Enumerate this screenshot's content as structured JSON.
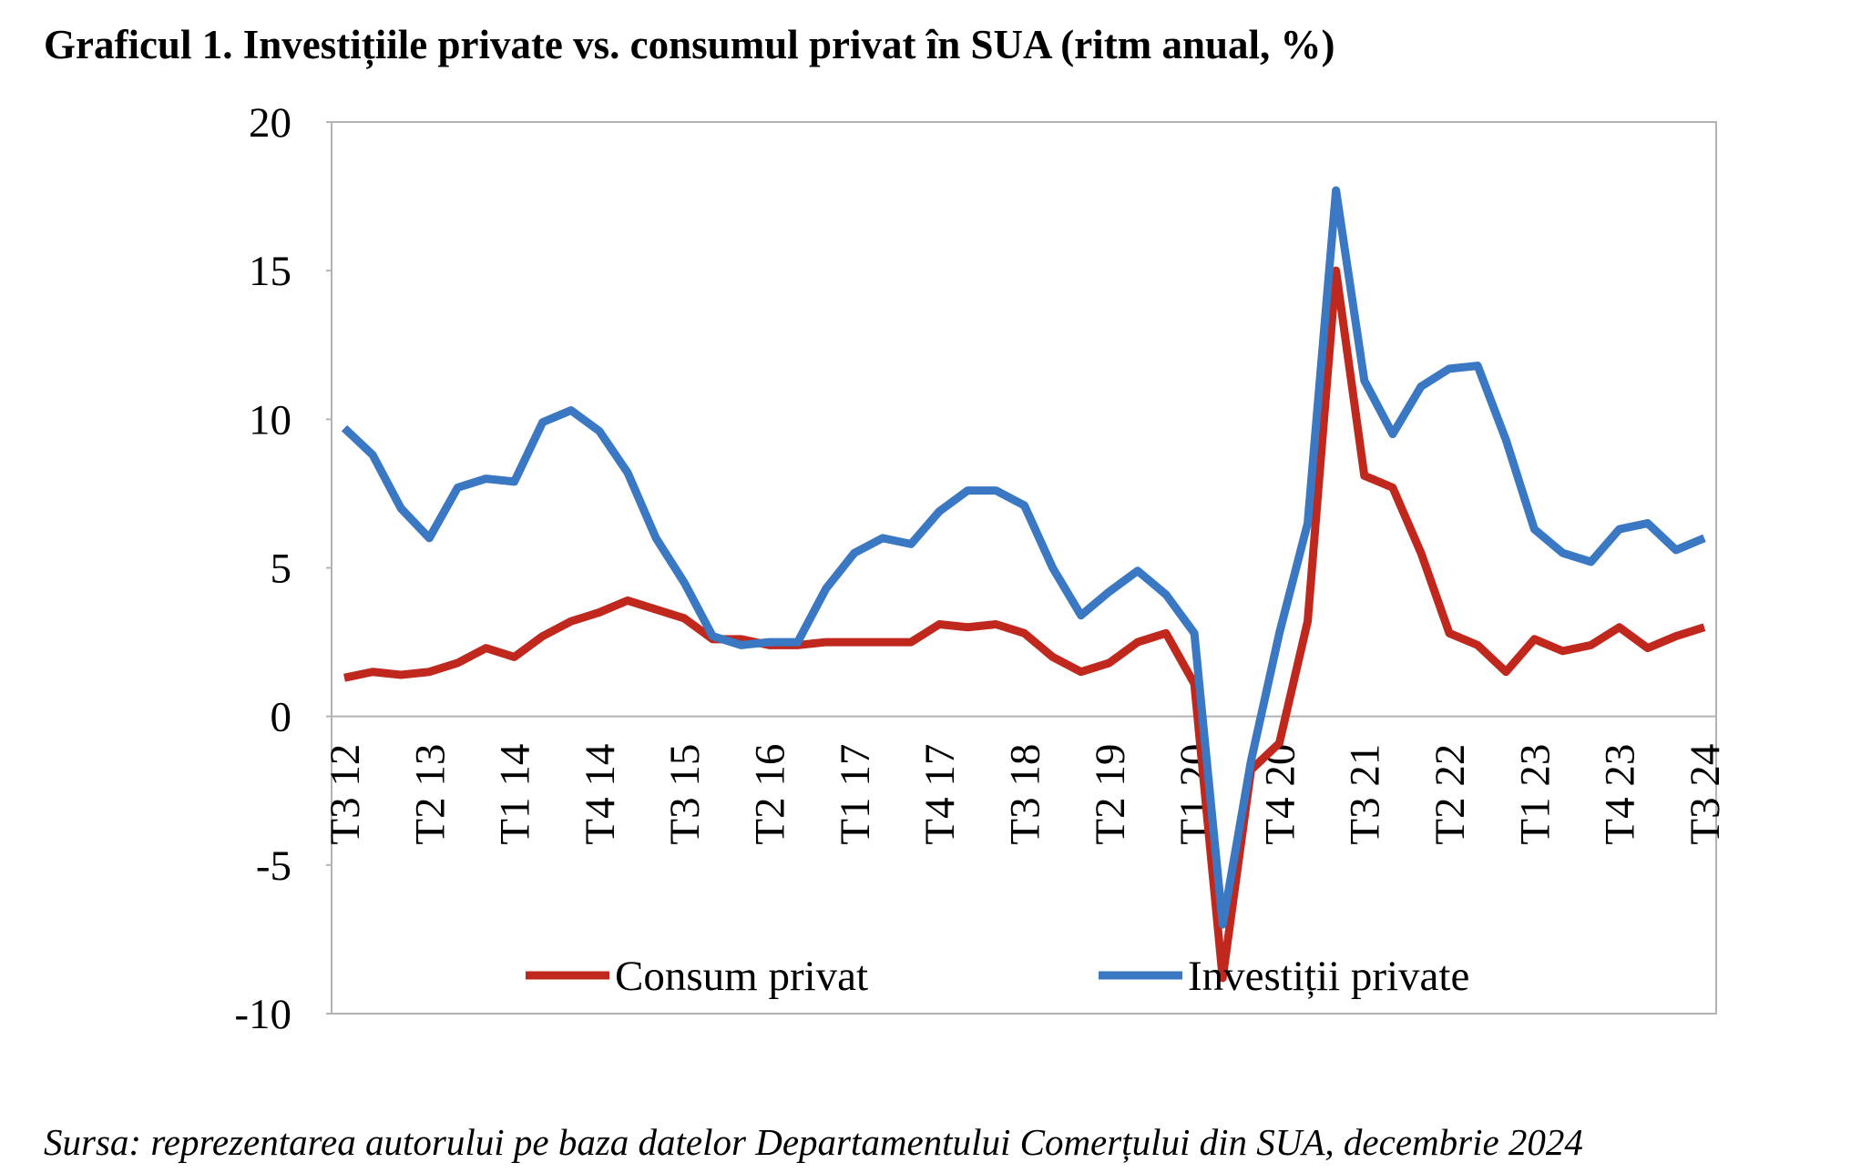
{
  "chart_data": {
    "type": "line",
    "title": "Graficul 1. Investițiile private vs. consumul privat în SUA (ritm anual, %)",
    "source": "Sursa: reprezentarea autorului pe baza datelor Departamentului Comerțului din SUA, decembrie 2024",
    "categories": [
      "T3 12",
      null,
      null,
      "T2 13",
      null,
      null,
      "T1 14",
      null,
      null,
      "T4 14",
      null,
      null,
      "T3 15",
      null,
      null,
      "T2 16",
      null,
      null,
      "T1 17",
      null,
      null,
      "T4 17",
      null,
      null,
      "T3 18",
      null,
      null,
      "T2 19",
      null,
      null,
      "T1 20",
      null,
      null,
      "T4 20",
      null,
      null,
      "T3 21",
      null,
      null,
      "T2 22",
      null,
      null,
      "T1 23",
      null,
      null,
      "T4 23",
      null,
      null,
      "T3 24"
    ],
    "series": [
      {
        "name": "Consum privat",
        "color": "#c0281e",
        "values": [
          1.3,
          1.5,
          1.4,
          1.5,
          1.8,
          2.3,
          2.0,
          2.7,
          3.2,
          3.5,
          3.9,
          3.6,
          3.3,
          2.6,
          2.6,
          2.4,
          2.4,
          2.5,
          2.5,
          2.5,
          2.5,
          3.1,
          3.0,
          3.1,
          2.8,
          2.0,
          1.5,
          1.8,
          2.5,
          2.8,
          1.1,
          -8.8,
          -1.8,
          -0.9,
          3.2,
          15.0,
          8.1,
          7.7,
          5.5,
          2.8,
          2.4,
          1.5,
          2.6,
          2.2,
          2.4,
          3.0,
          2.3,
          2.7,
          3.0
        ]
      },
      {
        "name": "Investiții private",
        "color": "#3a78c3",
        "values": [
          9.7,
          8.8,
          7.0,
          6.0,
          7.7,
          8.0,
          7.9,
          9.9,
          10.3,
          9.6,
          8.2,
          6.0,
          4.5,
          2.7,
          2.4,
          2.5,
          2.5,
          4.3,
          5.5,
          6.0,
          5.8,
          6.9,
          7.6,
          7.6,
          7.1,
          5.0,
          3.4,
          4.2,
          4.9,
          4.1,
          2.8,
          -7.0,
          -1.5,
          2.8,
          6.5,
          17.7,
          11.3,
          9.5,
          11.1,
          11.7,
          11.8,
          9.3,
          6.3,
          5.5,
          5.2,
          6.3,
          6.5,
          5.6,
          6.0
        ]
      }
    ],
    "ylim": [
      -10,
      20
    ],
    "yticks": [
      -10,
      -5,
      0,
      5,
      10,
      15,
      20
    ],
    "grid": false
  }
}
